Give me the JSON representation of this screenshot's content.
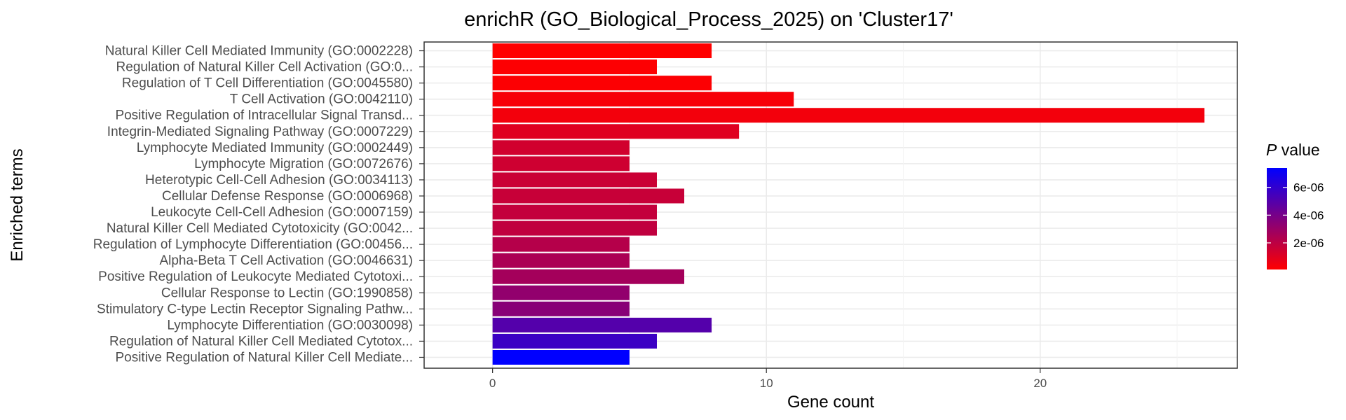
{
  "chart_data": {
    "type": "bar",
    "orientation": "horizontal",
    "title": "enrichR (GO_Biological_Process_2025) on 'Cluster17'",
    "xlabel": "Gene count",
    "ylabel": "Enriched terms",
    "xlim": [
      -2.5,
      27.2
    ],
    "x_ticks": [
      0,
      10,
      20
    ],
    "grid": true,
    "legend": {
      "title_italic": "P",
      "title_rest": " value",
      "placement": "right",
      "range": [
        8e-08,
        7.4e-06
      ],
      "ticks": [
        {
          "value": 2e-06,
          "label": "2e-06"
        },
        {
          "value": 4e-06,
          "label": "4e-06"
        },
        {
          "value": 6e-06,
          "label": "6e-06"
        }
      ],
      "color_low": "#ff0000",
      "color_high": "#0000ff"
    },
    "categories": [
      "Natural Killer Cell Mediated Immunity (GO:0002228)",
      "Regulation of Natural Killer Cell Activation (GO:0...",
      "Regulation of T Cell Differentiation (GO:0045580)",
      "T Cell Activation (GO:0042110)",
      "Positive Regulation of Intracellular Signal Transd...",
      "Integrin-Mediated Signaling Pathway (GO:0007229)",
      "Lymphocyte Mediated Immunity (GO:0002449)",
      "Lymphocyte Migration (GO:0072676)",
      "Heterotypic Cell-Cell Adhesion (GO:0034113)",
      "Cellular Defense Response (GO:0006968)",
      "Leukocyte Cell-Cell Adhesion (GO:0007159)",
      "Natural Killer Cell Mediated Cytotoxicity (GO:0042...",
      "Regulation of Lymphocyte Differentiation (GO:00456...",
      "Alpha-Beta T Cell Activation (GO:0046631)",
      "Positive Regulation of Leukocyte Mediated Cytotoxi...",
      "Cellular Response to Lectin (GO:1990858)",
      "Stimulatory C-type Lectin Receptor Signaling Pathw...",
      "Lymphocyte Differentiation (GO:0030098)",
      "Regulation of Natural Killer Cell Mediated Cytotox...",
      "Positive Regulation of Natural Killer Cell Mediate..."
    ],
    "values": [
      8,
      6,
      8,
      11,
      26,
      9,
      5,
      5,
      6,
      7,
      6,
      6,
      5,
      5,
      7,
      5,
      5,
      8,
      6,
      5
    ],
    "p_values": [
      1e-08,
      1.5e-07,
      1.7e-07,
      3e-07,
      4.2e-07,
      1e-06,
      1.4e-06,
      1.5e-06,
      1.6e-06,
      1.7e-06,
      1.8e-06,
      1.9e-06,
      2.2e-06,
      2.5e-06,
      2.7e-06,
      3.2e-06,
      3.5e-06,
      5e-06,
      5.7e-06,
      7.4e-06
    ]
  }
}
